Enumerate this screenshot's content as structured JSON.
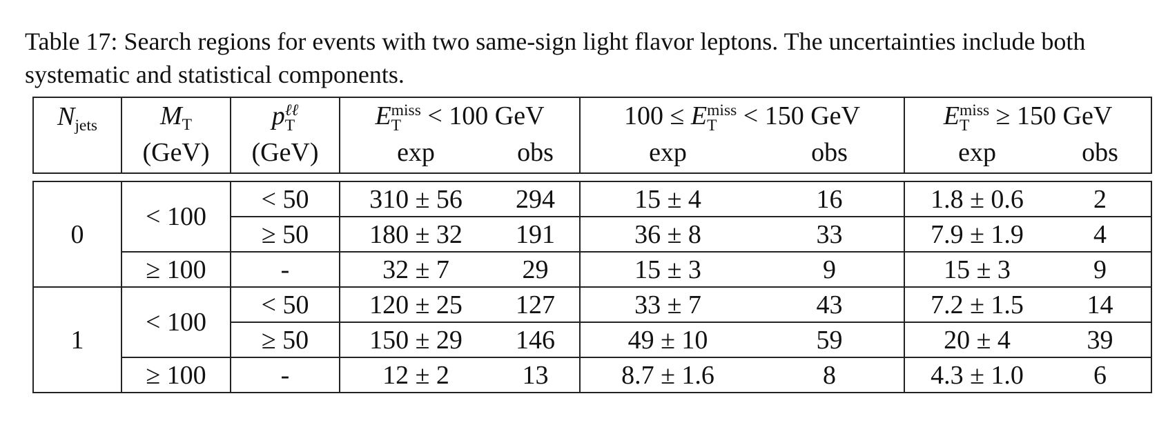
{
  "caption": "Table 17: Search regions for events with two same-sign light flavor leptons. The uncertainties include both systematic and statistical components.",
  "header": {
    "njets": {
      "base": "N",
      "sub": "jets"
    },
    "mt": {
      "base": "M",
      "sub": "T",
      "unit": "(GeV)"
    },
    "pt": {
      "base": "p",
      "sub": "T",
      "sup": "ℓℓ",
      "unit": "(GeV)"
    },
    "met_low": {
      "base": "E",
      "sup": "miss",
      "sub": "T",
      "rest": " < 100 GeV"
    },
    "met_mid": {
      "pre": "100 ≤ ",
      "base": "E",
      "sup": "miss",
      "sub": "T",
      "rest": " < 150 GeV"
    },
    "met_high": {
      "base": "E",
      "sup": "miss",
      "sub": "T",
      "rest": " ≥ 150 GeV"
    },
    "exp": "exp",
    "obs": "obs"
  },
  "groups": [
    {
      "njets": "0",
      "rows": [
        {
          "mt": "< 100",
          "pt": "< 50",
          "v": [
            "310 ± 56",
            "294",
            "15 ± 4",
            "16",
            "1.8 ± 0.6",
            "2"
          ]
        },
        {
          "mt": "",
          "pt": "≥ 50",
          "v": [
            "180 ± 32",
            "191",
            "36 ± 8",
            "33",
            "7.9 ± 1.9",
            "4"
          ]
        },
        {
          "mt": "≥ 100",
          "pt": "-",
          "v": [
            "32 ± 7",
            "29",
            "15 ± 3",
            "9",
            "15 ± 3",
            "9"
          ]
        }
      ]
    },
    {
      "njets": "1",
      "rows": [
        {
          "mt": "< 100",
          "pt": "< 50",
          "v": [
            "120 ± 25",
            "127",
            "33 ± 7",
            "43",
            "7.2 ± 1.5",
            "14"
          ]
        },
        {
          "mt": "",
          "pt": "≥ 50",
          "v": [
            "150 ± 29",
            "146",
            "49 ± 10",
            "59",
            "20 ± 4",
            "39"
          ]
        },
        {
          "mt": "≥ 100",
          "pt": "-",
          "v": [
            "12 ± 2",
            "13",
            "8.7 ± 1.6",
            "8",
            "4.3 ± 1.0",
            "6"
          ]
        }
      ]
    }
  ]
}
